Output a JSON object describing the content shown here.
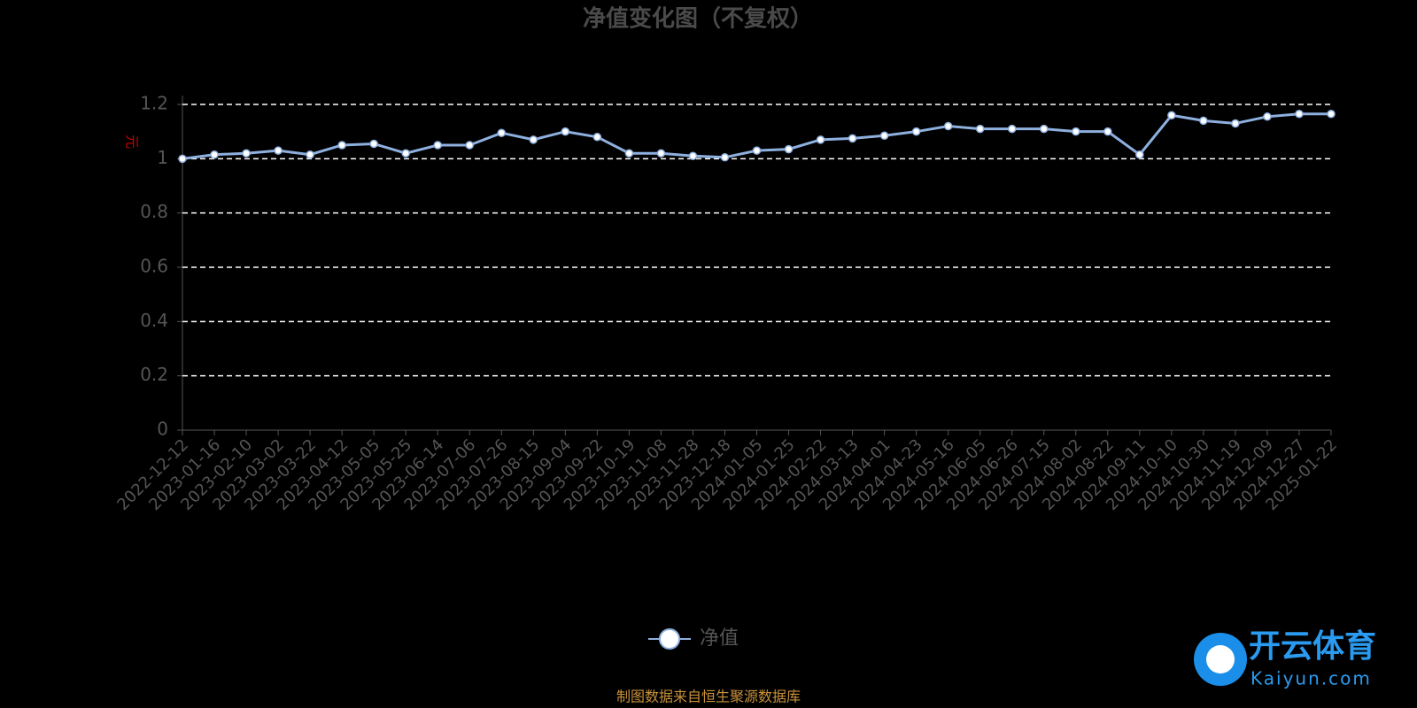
{
  "chart_data": {
    "type": "line",
    "title": "净值变化图（不复权）",
    "y_label": "元",
    "categories": [
      "2022-12-12",
      "2023-01-16",
      "2023-02-10",
      "2023-03-02",
      "2023-03-22",
      "2023-04-12",
      "2023-05-05",
      "2023-05-25",
      "2023-06-14",
      "2023-07-06",
      "2023-07-26",
      "2023-08-15",
      "2023-09-04",
      "2023-09-22",
      "2023-10-19",
      "2023-11-08",
      "2023-11-28",
      "2023-12-18",
      "2024-01-05",
      "2024-01-25",
      "2024-02-22",
      "2024-03-13",
      "2024-04-01",
      "2024-04-23",
      "2024-05-16",
      "2024-06-05",
      "2024-06-26",
      "2024-07-15",
      "2024-08-02",
      "2024-08-22",
      "2024-09-11",
      "2024-10-10",
      "2024-10-30",
      "2024-11-19",
      "2024-12-09",
      "2024-12-27",
      "2025-01-22"
    ],
    "series": [
      {
        "name": "净值",
        "color": "#8eb0df",
        "values": [
          1.0,
          1.015,
          1.02,
          1.03,
          1.015,
          1.05,
          1.055,
          1.02,
          1.05,
          1.05,
          1.095,
          1.07,
          1.1,
          1.08,
          1.02,
          1.02,
          1.01,
          1.005,
          1.03,
          1.035,
          1.07,
          1.075,
          1.085,
          1.1,
          1.12,
          1.11,
          1.11,
          1.11,
          1.1,
          1.1,
          1.015,
          1.16,
          1.14,
          1.13,
          1.155,
          1.165,
          1.165
        ]
      }
    ],
    "ylim": [
      0,
      1.2
    ],
    "yticks": [
      0,
      0.2,
      0.4,
      0.6,
      0.8,
      1,
      1.2
    ],
    "grid": true,
    "source": "制图数据来自恒生聚源数据库"
  },
  "watermark": {
    "brand": "开云体育",
    "url": "Kaiyun.com"
  }
}
